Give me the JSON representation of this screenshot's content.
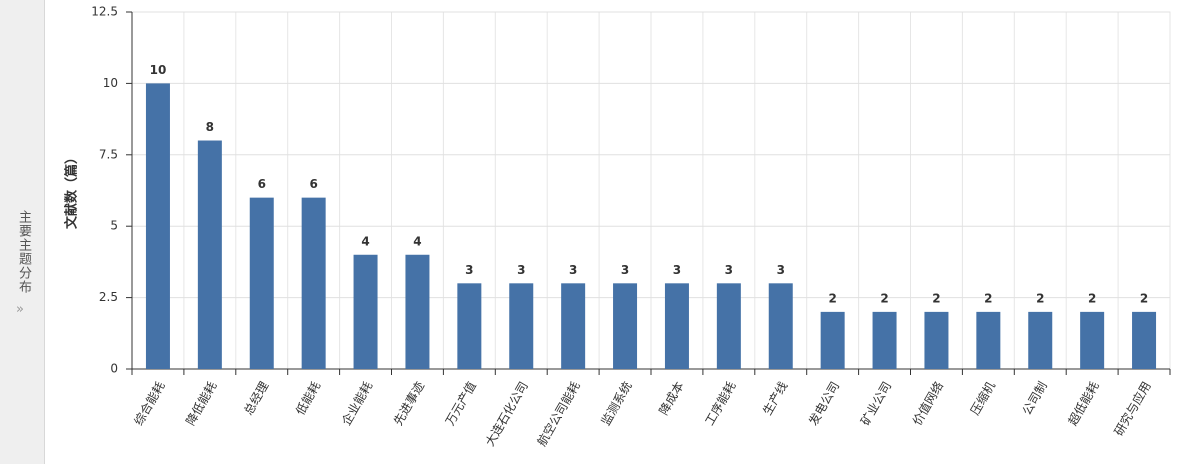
{
  "sidebar": {
    "label": "主要主题分布"
  },
  "chart_data": {
    "type": "bar",
    "y_axis_label": "文献数（篇）",
    "categories": [
      "综合能耗",
      "降低能耗",
      "总经理",
      "低能耗",
      "企业能耗",
      "先进事迹",
      "万元产值",
      "大连石化公司",
      "航空公司能耗",
      "监测系统",
      "降成本",
      "工序能耗",
      "生产线",
      "发电公司",
      "矿业公司",
      "价值网络",
      "压缩机",
      "公司制",
      "超低能耗",
      "研究与应用"
    ],
    "values": [
      10,
      8,
      6,
      6,
      4,
      4,
      3,
      3,
      3,
      3,
      3,
      3,
      3,
      2,
      2,
      2,
      2,
      2,
      2,
      2
    ],
    "color": "#4572a7",
    "ylim": [
      0,
      12.5
    ],
    "yticks": [
      0,
      2.5,
      5,
      7.5,
      10,
      12.5
    ],
    "grid": true
  }
}
